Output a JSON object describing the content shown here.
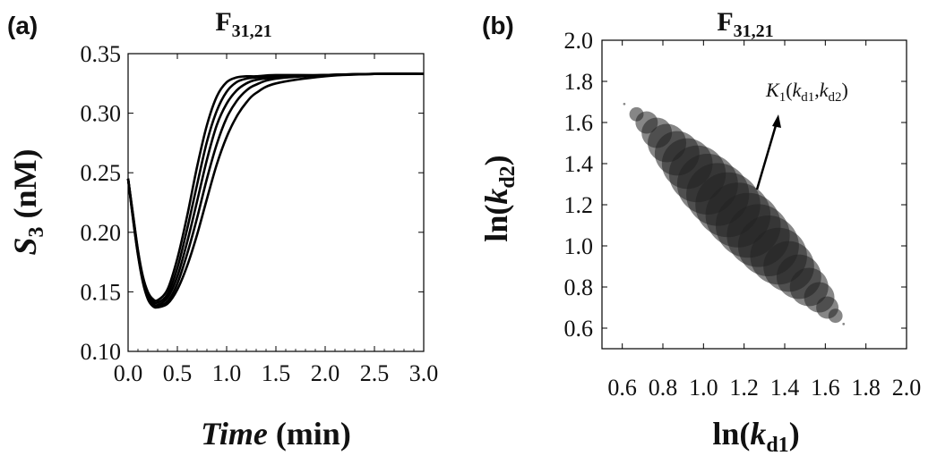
{
  "chart_data": [
    {
      "panel": "(a)",
      "type": "line",
      "title_main": "F",
      "title_sub": "31,21",
      "xlabel_italic": "Time",
      "xlabel_rest": " (min)",
      "ylabel_italic": "S",
      "ylabel_sub": "3",
      "ylabel_rest": " (nM)",
      "xlim": [
        0.0,
        3.0
      ],
      "ylim": [
        0.1,
        0.35
      ],
      "xticks": [
        "0.0",
        "0.5",
        "1.0",
        "1.5",
        "2.0",
        "2.5",
        "3.0"
      ],
      "yticks": [
        "0.10",
        "0.15",
        "0.20",
        "0.25",
        "0.30",
        "0.35"
      ],
      "line_color": "#000000",
      "series": [
        {
          "x": [
            0.0,
            0.05,
            0.1,
            0.15,
            0.2,
            0.25,
            0.3,
            0.4,
            0.5,
            0.6,
            0.7,
            0.8,
            0.9,
            1.0,
            1.1,
            1.2,
            1.3,
            1.5,
            2.0,
            2.5,
            3.0
          ],
          "y": [
            0.245,
            0.215,
            0.185,
            0.163,
            0.15,
            0.144,
            0.143,
            0.152,
            0.178,
            0.214,
            0.255,
            0.29,
            0.314,
            0.326,
            0.33,
            0.331,
            0.331,
            0.332,
            0.332,
            0.333,
            0.333
          ]
        },
        {
          "x": [
            0.0,
            0.05,
            0.1,
            0.15,
            0.2,
            0.25,
            0.3,
            0.4,
            0.5,
            0.6,
            0.7,
            0.8,
            0.9,
            1.0,
            1.1,
            1.2,
            1.3,
            1.5,
            2.0,
            2.5,
            3.0
          ],
          "y": [
            0.245,
            0.214,
            0.184,
            0.161,
            0.148,
            0.142,
            0.141,
            0.148,
            0.17,
            0.203,
            0.24,
            0.276,
            0.302,
            0.318,
            0.326,
            0.329,
            0.33,
            0.331,
            0.332,
            0.333,
            0.333
          ]
        },
        {
          "x": [
            0.0,
            0.05,
            0.1,
            0.15,
            0.2,
            0.25,
            0.3,
            0.4,
            0.5,
            0.6,
            0.7,
            0.8,
            0.9,
            1.0,
            1.1,
            1.2,
            1.3,
            1.5,
            2.0,
            2.5,
            3.0
          ],
          "y": [
            0.245,
            0.213,
            0.183,
            0.16,
            0.146,
            0.14,
            0.139,
            0.145,
            0.163,
            0.192,
            0.226,
            0.261,
            0.29,
            0.308,
            0.319,
            0.325,
            0.328,
            0.33,
            0.332,
            0.333,
            0.333
          ]
        },
        {
          "x": [
            0.0,
            0.05,
            0.1,
            0.15,
            0.2,
            0.25,
            0.3,
            0.4,
            0.5,
            0.6,
            0.7,
            0.8,
            0.9,
            1.0,
            1.1,
            1.2,
            1.3,
            1.5,
            2.0,
            2.5,
            3.0
          ],
          "y": [
            0.245,
            0.212,
            0.182,
            0.159,
            0.145,
            0.139,
            0.138,
            0.142,
            0.157,
            0.182,
            0.212,
            0.245,
            0.274,
            0.296,
            0.31,
            0.319,
            0.324,
            0.329,
            0.332,
            0.333,
            0.333
          ]
        },
        {
          "x": [
            0.0,
            0.05,
            0.1,
            0.15,
            0.2,
            0.25,
            0.3,
            0.4,
            0.5,
            0.6,
            0.7,
            0.8,
            0.9,
            1.0,
            1.1,
            1.2,
            1.3,
            1.5,
            2.0,
            2.5,
            3.0
          ],
          "y": [
            0.245,
            0.211,
            0.181,
            0.158,
            0.144,
            0.138,
            0.137,
            0.14,
            0.152,
            0.172,
            0.198,
            0.228,
            0.257,
            0.28,
            0.297,
            0.309,
            0.317,
            0.325,
            0.331,
            0.333,
            0.333
          ]
        }
      ]
    },
    {
      "panel": "(b)",
      "type": "scatter",
      "title_main": "F",
      "title_sub": "31,21",
      "xlabel_main": "ln(",
      "xlabel_italic": "k",
      "xlabel_sub": "d1",
      "xlabel_close": ")",
      "ylabel_main": "ln(",
      "ylabel_italic": "k",
      "ylabel_sub": "d2",
      "ylabel_close": ")",
      "xlim": [
        0.5,
        2.0
      ],
      "ylim": [
        0.5,
        2.0
      ],
      "xticks": [
        "0.6",
        "0.8",
        "1.0",
        "1.2",
        "1.4",
        "1.6",
        "1.8",
        "2.0"
      ],
      "yticks": [
        "0.6",
        "0.8",
        "1.0",
        "1.2",
        "1.4",
        "1.6",
        "1.8",
        "2.0"
      ],
      "annotation": {
        "italic": "K",
        "sub": "1",
        "open": "(",
        "k": "k",
        "sub_a": "d1",
        "comma": ",",
        "sub_b": "d2",
        "close": ")"
      },
      "marker_color": "#222222",
      "marker_opacity": 0.55,
      "points": [
        {
          "x": 0.67,
          "y": 1.64,
          "r": 0.035
        },
        {
          "x": 0.72,
          "y": 1.6,
          "r": 0.055
        },
        {
          "x": 0.77,
          "y": 1.55,
          "r": 0.075
        },
        {
          "x": 0.82,
          "y": 1.5,
          "r": 0.095
        },
        {
          "x": 0.87,
          "y": 1.45,
          "r": 0.11
        },
        {
          "x": 0.92,
          "y": 1.4,
          "r": 0.125
        },
        {
          "x": 0.97,
          "y": 1.35,
          "r": 0.14
        },
        {
          "x": 1.02,
          "y": 1.3,
          "r": 0.15
        },
        {
          "x": 1.07,
          "y": 1.25,
          "r": 0.155
        },
        {
          "x": 1.12,
          "y": 1.2,
          "r": 0.16
        },
        {
          "x": 1.17,
          "y": 1.15,
          "r": 0.16
        },
        {
          "x": 1.22,
          "y": 1.1,
          "r": 0.16
        },
        {
          "x": 1.27,
          "y": 1.05,
          "r": 0.155
        },
        {
          "x": 1.32,
          "y": 1.0,
          "r": 0.15
        },
        {
          "x": 1.37,
          "y": 0.95,
          "r": 0.14
        },
        {
          "x": 1.42,
          "y": 0.9,
          "r": 0.125
        },
        {
          "x": 1.47,
          "y": 0.85,
          "r": 0.11
        },
        {
          "x": 1.52,
          "y": 0.8,
          "r": 0.095
        },
        {
          "x": 1.57,
          "y": 0.75,
          "r": 0.075
        },
        {
          "x": 1.61,
          "y": 0.7,
          "r": 0.055
        },
        {
          "x": 1.65,
          "y": 0.66,
          "r": 0.035
        },
        {
          "x": 0.61,
          "y": 1.69,
          "r": 0.006
        },
        {
          "x": 1.69,
          "y": 0.62,
          "r": 0.006
        }
      ]
    }
  ]
}
